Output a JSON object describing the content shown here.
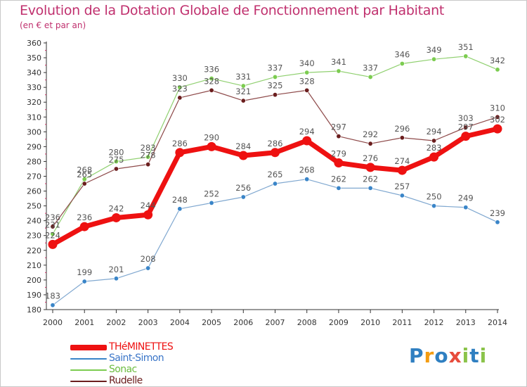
{
  "header": {
    "title": "Evolution de la Dotation Globale de Fonctionnement par Habitant",
    "subtitle": "(en € et par an)"
  },
  "logo": {
    "text": "Proxiti",
    "letters": [
      "P",
      "r",
      "o",
      "x",
      "i",
      "t",
      "i"
    ],
    "colors": [
      "#2f7fc1",
      "#f39c12",
      "#2f7fc1",
      "#e74c3c",
      "#8bc34a",
      "#2f7fc1",
      "#8bc34a"
    ]
  },
  "chart_data": {
    "type": "line",
    "title": "Evolution de la Dotation Globale de Fonctionnement par Habitant",
    "subtitle": "(en € et par an)",
    "x": [
      2000,
      2001,
      2002,
      2003,
      2004,
      2005,
      2006,
      2007,
      2008,
      2009,
      2010,
      2011,
      2012,
      2013,
      2014
    ],
    "x_tick_labels": [
      "2000",
      "2001",
      "2002",
      "2003",
      "2004",
      "2005",
      "2006",
      "2007",
      "2008",
      "2009",
      "2010",
      "2011",
      "2012",
      "2013",
      "2014"
    ],
    "ylim": [
      180,
      360
    ],
    "y_ticks": [
      180,
      190,
      200,
      210,
      220,
      230,
      240,
      250,
      260,
      270,
      280,
      290,
      300,
      310,
      320,
      330,
      340,
      350,
      360
    ],
    "y_tick_labels": [
      "180",
      "190",
      "200",
      "210",
      "220",
      "230",
      "240",
      "250",
      "260",
      "270",
      "280",
      "290",
      "300",
      "310",
      "320",
      "330",
      "340",
      "350",
      "360"
    ],
    "grid": false,
    "legend_placement": "bottom-left",
    "series": [
      {
        "name": "Sonac",
        "color": "#90d070",
        "marker": "#7ccc50",
        "width": "thin",
        "values": [
          231,
          268,
          280,
          283,
          330,
          336,
          331,
          337,
          340,
          341,
          337,
          346,
          349,
          351,
          342
        ],
        "labels": [
          "231",
          "268",
          "280",
          "283",
          "330",
          "336",
          "331",
          "337",
          "340",
          "341",
          "337",
          "346",
          "349",
          "351",
          "342"
        ]
      },
      {
        "name": "Rudelle",
        "color": "#8e4a4a",
        "marker": "#6b1e1e",
        "width": "thin",
        "values": [
          236,
          265,
          275,
          278,
          323,
          328,
          321,
          325,
          328,
          297,
          292,
          296,
          294,
          303,
          310
        ],
        "labels": [
          "236",
          "265",
          "275",
          "278",
          "323",
          "328",
          "321",
          "325",
          "328",
          "297",
          "292",
          "296",
          "294",
          "303",
          "310"
        ]
      },
      {
        "name": "Saint-Simon",
        "color": "#80a8d0",
        "marker": "#3a85c8",
        "width": "thin",
        "values": [
          183,
          199,
          201,
          208,
          248,
          252,
          256,
          265,
          268,
          262,
          262,
          257,
          250,
          249,
          239
        ],
        "labels": [
          "183",
          "199",
          "201",
          "208",
          "248",
          "252",
          "256",
          "265",
          "268",
          "262",
          "262",
          "257",
          "250",
          "249",
          "239"
        ]
      },
      {
        "name": "THéMINETTES",
        "color": "#ee1111",
        "marker": "#ee1111",
        "width": "thick",
        "values": [
          224,
          236,
          242,
          244,
          286,
          290,
          284,
          286,
          294,
          279,
          276,
          274,
          283,
          297,
          302
        ],
        "labels": [
          "224",
          "236",
          "242",
          "244",
          "286",
          "290",
          "284",
          "286",
          "294",
          "279",
          "276",
          "274",
          "283",
          "297",
          "302"
        ]
      }
    ],
    "legend": [
      {
        "name": "THéMINETTES",
        "color": "#ee1111",
        "text_color": "#ee1111",
        "width": "thick"
      },
      {
        "name": "Saint-Simon",
        "color": "#3a85c8",
        "text_color": "#3a75c8",
        "width": "thin"
      },
      {
        "name": "Sonac",
        "color": "#7ccc50",
        "text_color": "#6cbc40",
        "width": "thin"
      },
      {
        "name": "Rudelle",
        "color": "#6b1e1e",
        "text_color": "#6b1e1e",
        "width": "thin"
      }
    ]
  }
}
